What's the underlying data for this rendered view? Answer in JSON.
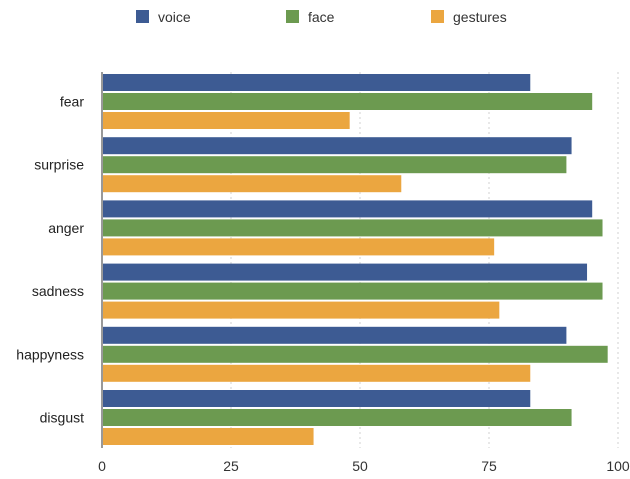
{
  "chart_data": {
    "type": "bar",
    "orientation": "horizontal",
    "title": "",
    "xlabel": "",
    "ylabel": "",
    "categories": [
      "fear",
      "surprise",
      "anger",
      "sadness",
      "happyness",
      "disgust"
    ],
    "series": [
      {
        "name": "voice",
        "color": "#3d5b93",
        "values": [
          83,
          91,
          95,
          94,
          90,
          83
        ]
      },
      {
        "name": "face",
        "color": "#6c9a50",
        "values": [
          95,
          90,
          97,
          97,
          98,
          91
        ]
      },
      {
        "name": "gestures",
        "color": "#eba640",
        "values": [
          48,
          58,
          76,
          77,
          83,
          41
        ]
      }
    ],
    "xlim": [
      0,
      100
    ],
    "xticks": [
      0,
      25,
      50,
      75,
      100
    ],
    "grid": true,
    "legend_position": "top"
  }
}
